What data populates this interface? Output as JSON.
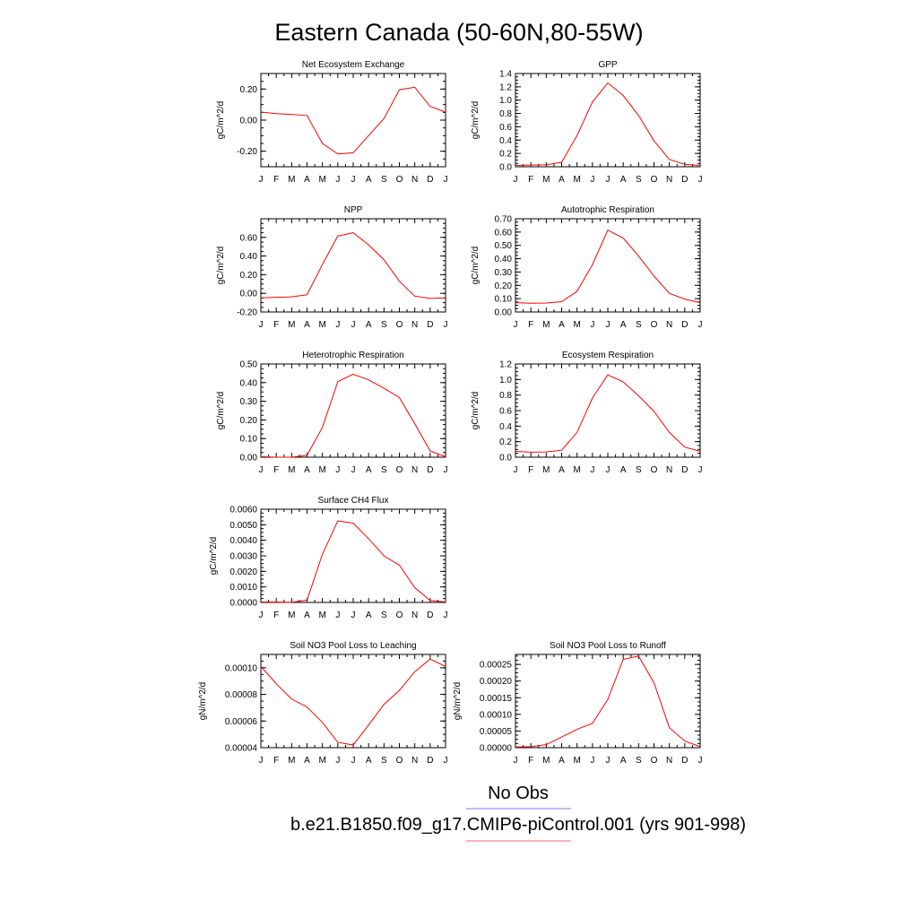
{
  "title": "Eastern Canada (50-60N,80-55W)",
  "legend": {
    "entries": [
      {
        "label": "No Obs",
        "color": "#7777ee"
      },
      {
        "label": "b.e21.B1850.f09_g17.CMIP6-piControl.001 (yrs 901-998)",
        "color": "#ff6666"
      }
    ]
  },
  "chart_data": [
    {
      "type": "line",
      "title": "Net Ecosystem Exchange",
      "ylabel": "gC/m^2/d",
      "x": [
        "J",
        "F",
        "M",
        "A",
        "M",
        "J",
        "J",
        "A",
        "S",
        "O",
        "N",
        "D",
        "J"
      ],
      "ylim": [
        -0.3,
        0.3
      ],
      "yticks": [
        -0.2,
        0.0,
        0.2
      ],
      "yticklabels": [
        "-0.20",
        "0.00",
        "0.20"
      ],
      "series": [
        {
          "color": "#ff0000",
          "values": [
            0.052,
            0.042,
            0.037,
            0.03,
            -0.15,
            -0.218,
            -0.21,
            -0.1,
            0.01,
            0.195,
            0.212,
            0.088,
            0.052
          ]
        }
      ]
    },
    {
      "type": "line",
      "title": "GPP",
      "ylabel": "gC/m^2/d",
      "x": [
        "J",
        "F",
        "M",
        "A",
        "M",
        "J",
        "J",
        "A",
        "S",
        "O",
        "N",
        "D",
        "J"
      ],
      "ylim": [
        0.0,
        1.4
      ],
      "yticks": [
        0.0,
        0.2,
        0.4,
        0.6,
        0.8,
        1.0,
        1.2,
        1.4
      ],
      "yticklabels": [
        "0.0",
        "0.2",
        "0.4",
        "0.6",
        "0.8",
        "1.0",
        "1.2",
        "1.4"
      ],
      "series": [
        {
          "color": "#ff0000",
          "values": [
            0.02,
            0.025,
            0.03,
            0.065,
            0.47,
            0.97,
            1.26,
            1.07,
            0.77,
            0.39,
            0.11,
            0.035,
            0.02
          ]
        }
      ]
    },
    {
      "type": "line",
      "title": "NPP",
      "ylabel": "gC/m^2/d",
      "x": [
        "J",
        "F",
        "M",
        "A",
        "M",
        "J",
        "J",
        "A",
        "S",
        "O",
        "N",
        "D",
        "J"
      ],
      "ylim": [
        -0.2,
        0.8
      ],
      "yticks": [
        -0.2,
        0.0,
        0.2,
        0.4,
        0.6
      ],
      "yticklabels": [
        "-0.20",
        "0.00",
        "0.20",
        "0.40",
        "0.60"
      ],
      "series": [
        {
          "color": "#ff0000",
          "values": [
            -0.048,
            -0.042,
            -0.038,
            -0.015,
            0.31,
            0.615,
            0.65,
            0.52,
            0.36,
            0.13,
            -0.03,
            -0.055,
            -0.048
          ]
        }
      ]
    },
    {
      "type": "line",
      "title": "Autotrophic Respiration",
      "ylabel": "gC/m^2/d",
      "x": [
        "J",
        "F",
        "M",
        "A",
        "M",
        "J",
        "J",
        "A",
        "S",
        "O",
        "N",
        "D",
        "J"
      ],
      "ylim": [
        0.0,
        0.7
      ],
      "yticks": [
        0.0,
        0.1,
        0.2,
        0.3,
        0.4,
        0.5,
        0.6,
        0.7
      ],
      "yticklabels": [
        "0.00",
        "0.10",
        "0.20",
        "0.30",
        "0.40",
        "0.50",
        "0.60",
        "0.70"
      ],
      "series": [
        {
          "color": "#ff0000",
          "values": [
            0.07,
            0.066,
            0.067,
            0.077,
            0.155,
            0.355,
            0.615,
            0.555,
            0.42,
            0.27,
            0.14,
            0.097,
            0.07
          ]
        }
      ]
    },
    {
      "type": "line",
      "title": "Heterotrophic Respiration",
      "ylabel": "gC/m^2/d",
      "x": [
        "J",
        "F",
        "M",
        "A",
        "M",
        "J",
        "J",
        "A",
        "S",
        "O",
        "N",
        "D",
        "J"
      ],
      "ylim": [
        0.0,
        0.5
      ],
      "yticks": [
        0.0,
        0.1,
        0.2,
        0.3,
        0.4,
        0.5
      ],
      "yticklabels": [
        "0.00",
        "0.10",
        "0.20",
        "0.30",
        "0.40",
        "0.50"
      ],
      "series": [
        {
          "color": "#ff0000",
          "values": [
            0.003,
            0.0,
            0.0,
            0.01,
            0.16,
            0.405,
            0.445,
            0.415,
            0.37,
            0.32,
            0.18,
            0.033,
            0.003
          ]
        }
      ]
    },
    {
      "type": "line",
      "title": "Ecosystem Respiration",
      "ylabel": "gC/m^2/d",
      "x": [
        "J",
        "F",
        "M",
        "A",
        "M",
        "J",
        "J",
        "A",
        "S",
        "O",
        "N",
        "D",
        "J"
      ],
      "ylim": [
        0.0,
        1.2
      ],
      "yticks": [
        0.0,
        0.2,
        0.4,
        0.6,
        0.8,
        1.0,
        1.2
      ],
      "yticklabels": [
        "0.0",
        "0.2",
        "0.4",
        "0.6",
        "0.8",
        "1.0",
        "1.2"
      ],
      "series": [
        {
          "color": "#ff0000",
          "values": [
            0.075,
            0.065,
            0.068,
            0.09,
            0.32,
            0.76,
            1.06,
            0.97,
            0.79,
            0.59,
            0.32,
            0.13,
            0.075
          ]
        }
      ]
    },
    {
      "type": "line",
      "title": "Surface CH4 Flux",
      "ylabel": "gC/m^2/d",
      "x": [
        "J",
        "F",
        "M",
        "A",
        "M",
        "J",
        "J",
        "A",
        "S",
        "O",
        "N",
        "D",
        "J"
      ],
      "ylim": [
        0.0,
        0.006
      ],
      "yticks": [
        0.0,
        0.001,
        0.002,
        0.003,
        0.004,
        0.005,
        0.006
      ],
      "yticklabels": [
        "0.0000",
        "0.0010",
        "0.0020",
        "0.0030",
        "0.0040",
        "0.0050",
        "0.0060"
      ],
      "series": [
        {
          "color": "#ff0000",
          "values": [
            3e-05,
            2e-05,
            1e-05,
            0.00015,
            0.0031,
            0.00525,
            0.0051,
            0.0041,
            0.003,
            0.0024,
            0.00095,
            0.00012,
            3e-05
          ]
        }
      ]
    },
    {
      "type": "line",
      "title": "Soil NO3 Pool Loss to Leaching",
      "ylabel": "gN/m^2/d",
      "x": [
        "J",
        "F",
        "M",
        "A",
        "M",
        "J",
        "J",
        "A",
        "S",
        "O",
        "N",
        "D",
        "J"
      ],
      "ylim": [
        4e-05,
        0.00011
      ],
      "yticks": [
        4e-05,
        6e-05,
        8e-05,
        0.0001
      ],
      "yticklabels": [
        "0.00004",
        "0.00006",
        "0.00008",
        "0.00010"
      ],
      "series": [
        {
          "color": "#ff0000",
          "values": [
            0.000101,
            8.8e-05,
            7.65e-05,
            7.05e-05,
            5.9e-05,
            4.4e-05,
            4.2e-05,
            5.7e-05,
            7.25e-05,
            8.3e-05,
            9.7e-05,
            0.0001065,
            0.000101
          ]
        }
      ]
    },
    {
      "type": "line",
      "title": "Soil NO3 Pool Loss to Runoff",
      "ylabel": "gN/m^2/d",
      "x": [
        "J",
        "F",
        "M",
        "A",
        "M",
        "J",
        "J",
        "A",
        "S",
        "O",
        "N",
        "D",
        "J"
      ],
      "ylim": [
        0.0,
        0.00028
      ],
      "yticks": [
        0.0,
        5e-05,
        0.0001,
        0.00015,
        0.0002,
        0.00025
      ],
      "yticklabels": [
        "0.00000",
        "0.00005",
        "0.00010",
        "0.00015",
        "0.00020",
        "0.00025"
      ],
      "series": [
        {
          "color": "#ff0000",
          "values": [
            2e-06,
            3e-06,
            9e-06,
            3.2e-05,
            5.5e-05,
            7.3e-05,
            0.000145,
            0.000265,
            0.000275,
            0.000195,
            6e-05,
            2e-05,
            3e-06
          ]
        }
      ]
    }
  ]
}
